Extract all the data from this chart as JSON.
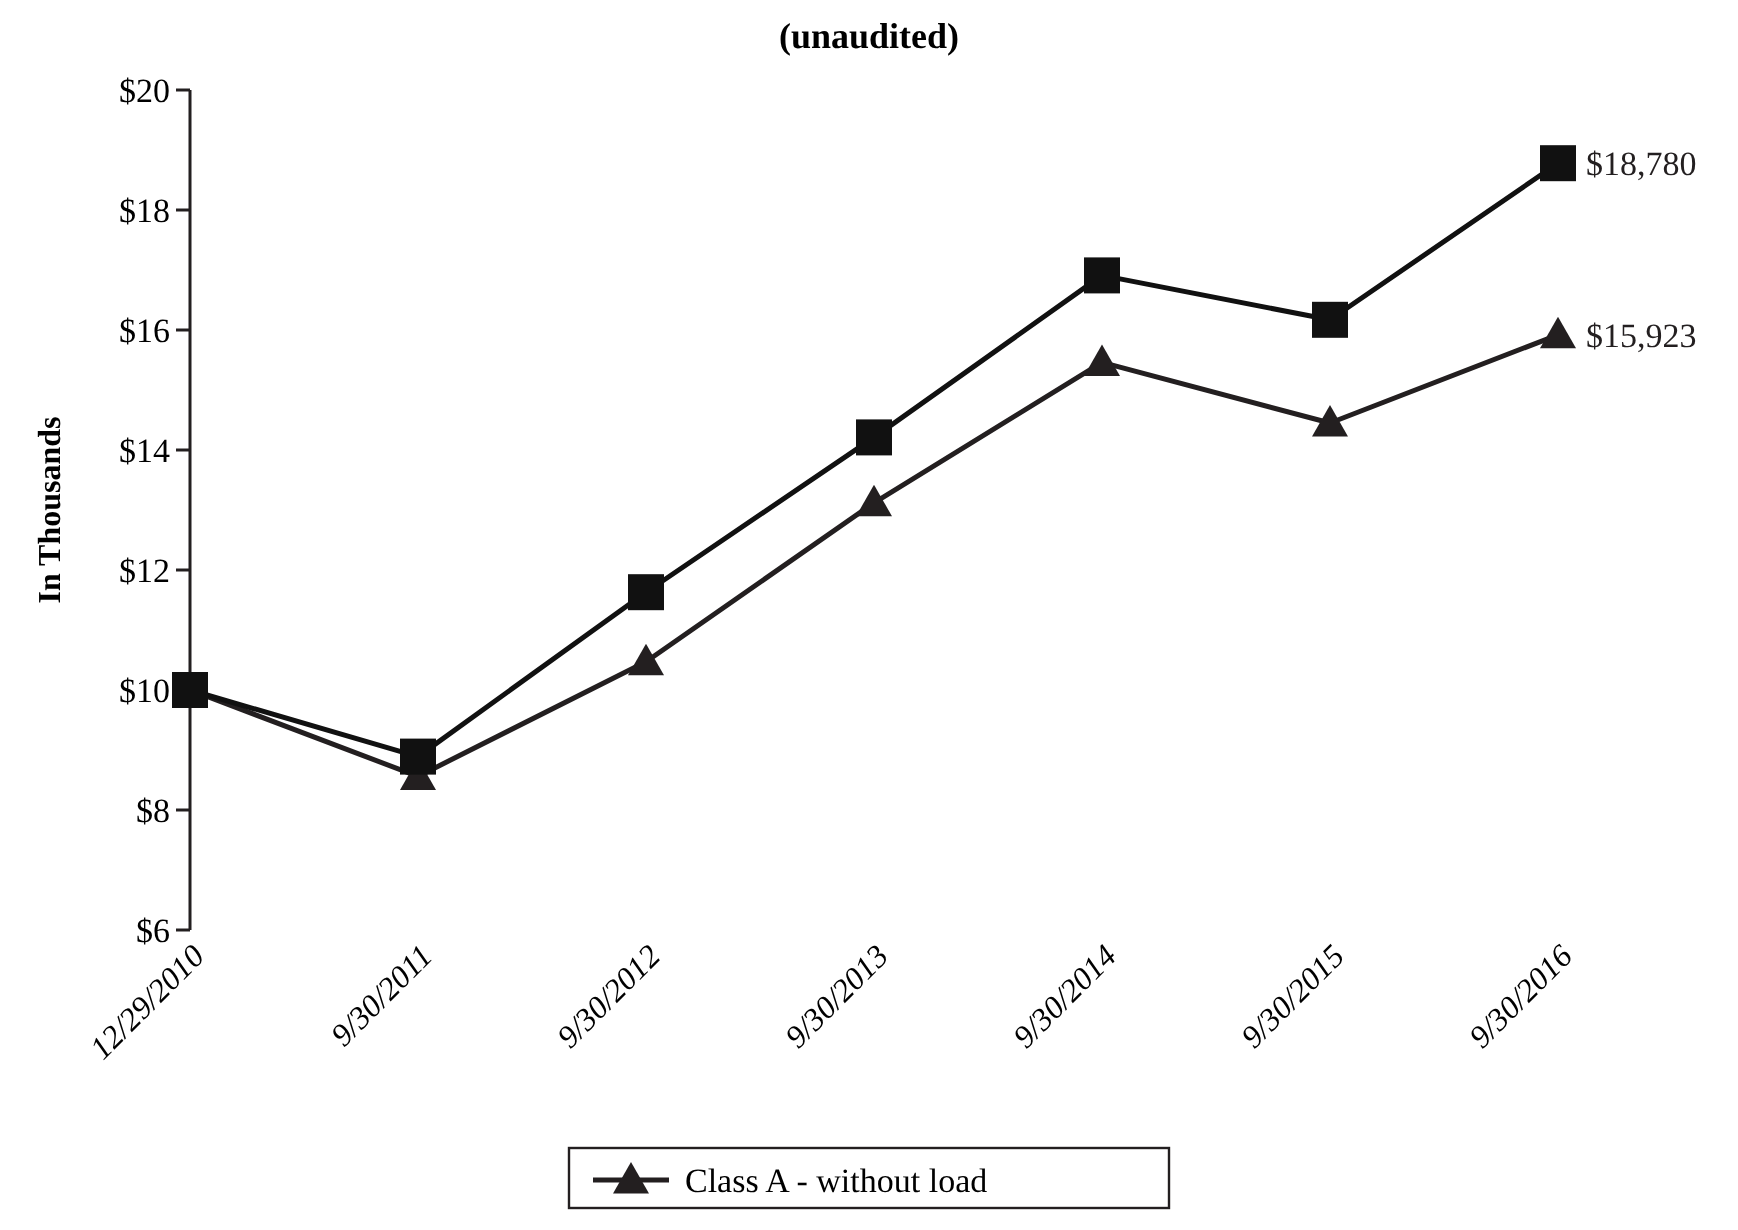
{
  "chart_data": {
    "type": "line",
    "title": "(unaudited)",
    "ylabel": "In Thousands",
    "categories": [
      "12/29/2010",
      "9/30/2011",
      "9/30/2012",
      "9/30/2013",
      "9/30/2014",
      "9/30/2015",
      "9/30/2016"
    ],
    "series": [
      {
        "name": "Class A - without load",
        "color": "#231f20",
        "marker": "triangle",
        "values": [
          10,
          8.56,
          10.47,
          13.12,
          15.46,
          14.45,
          15.92
        ]
      },
      {
        "color": "#111111",
        "marker": "square",
        "values": [
          10,
          8.89,
          11.63,
          14.21,
          16.91,
          16.17,
          18.78
        ]
      }
    ],
    "annotations": [
      {
        "text": "$15,923",
        "x": "9/30/2016",
        "y": 15.92
      },
      {
        "text": "$18,780",
        "x": "9/30/2016",
        "y": 18.78
      }
    ],
    "ylim": [
      6,
      20
    ],
    "yticks": [
      {
        "value": 6,
        "label": "$6"
      },
      {
        "value": 8,
        "label": "$8"
      },
      {
        "value": 10,
        "label": "$10"
      },
      {
        "value": 12,
        "label": "$12"
      },
      {
        "value": 14,
        "label": "$14"
      },
      {
        "value": 16,
        "label": "$16"
      },
      {
        "value": 18,
        "label": "$18"
      },
      {
        "value": 20,
        "label": "$20"
      }
    ],
    "legend": "bottom",
    "grid": false,
    "line_style": "solid"
  }
}
